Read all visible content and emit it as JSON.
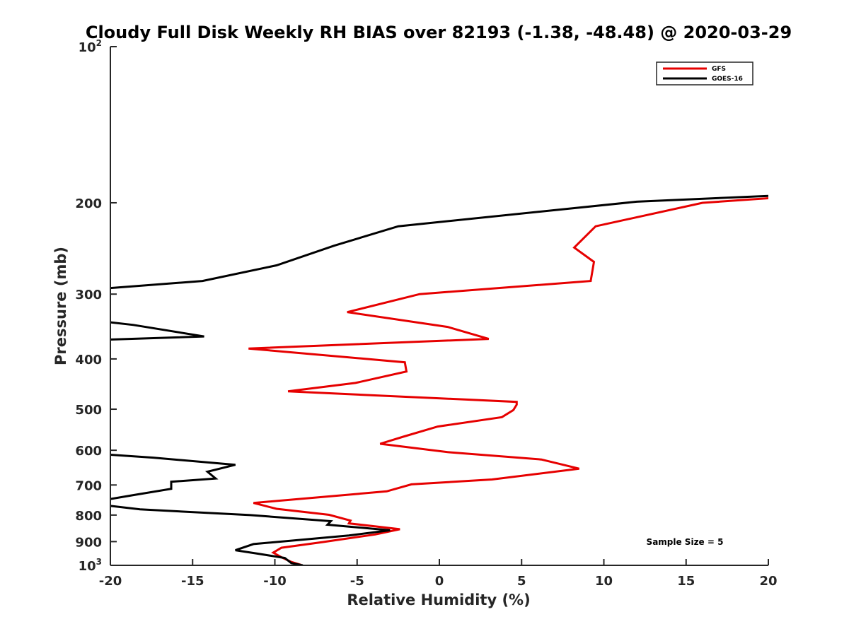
{
  "chart_data": {
    "type": "line",
    "title": "Cloudy Full Disk Weekly RH BIAS over 82193 (-1.38, -48.48) @ 2020-03-29",
    "xlabel": "Relative Humidity (%)",
    "ylabel": "Pressure (mb)",
    "xlim": [
      -20,
      20
    ],
    "ylim": [
      100,
      1000
    ],
    "y_scale": "log",
    "y_reversed": true,
    "grid": false,
    "x_ticks": [
      -20,
      -15,
      -10,
      -5,
      0,
      5,
      10,
      15,
      20
    ],
    "x_tick_labels": [
      "-20",
      "-15",
      "-10",
      "-5",
      "0",
      "5",
      "10",
      "15",
      "20"
    ],
    "y_ticks": [
      {
        "value": 100,
        "base": "10",
        "exp": "2"
      },
      {
        "value": 200,
        "label": "200"
      },
      {
        "value": 300,
        "label": "300"
      },
      {
        "value": 400,
        "label": "400"
      },
      {
        "value": 500,
        "label": "500"
      },
      {
        "value": 600,
        "label": "600"
      },
      {
        "value": 700,
        "label": "700"
      },
      {
        "value": 800,
        "label": "800"
      },
      {
        "value": 900,
        "label": "900"
      },
      {
        "value": 1000,
        "base": "10",
        "exp": "3"
      }
    ],
    "legend_position": "top-right",
    "annotation": "Sample Size = 5",
    "series": [
      {
        "name": "GFS",
        "color": "#e60000",
        "points": [
          [
            20,
            196
          ],
          [
            16,
            200
          ],
          [
            9.5,
            222
          ],
          [
            8.2,
            244
          ],
          [
            9.4,
            260
          ],
          [
            9.2,
            283
          ],
          [
            -1.2,
            300
          ],
          [
            -5.6,
            325
          ],
          [
            0.5,
            347
          ],
          [
            3.0,
            366
          ],
          [
            -11.6,
            382
          ],
          [
            -2.1,
            406
          ],
          [
            -2.0,
            423
          ],
          [
            -5.1,
            445
          ],
          [
            -9.2,
            462
          ],
          [
            4.7,
            484
          ],
          [
            4.7,
            490
          ],
          [
            4.5,
            502
          ],
          [
            3.8,
            518
          ],
          [
            -0.1,
            540
          ],
          [
            -2.2,
            565
          ],
          [
            -3.6,
            583
          ],
          [
            0.5,
            605
          ],
          [
            6.2,
            625
          ],
          [
            8.5,
            651
          ],
          [
            3.2,
            683
          ],
          [
            -1.7,
            698
          ],
          [
            -3.2,
            720
          ],
          [
            -7.1,
            738
          ],
          [
            -11.3,
            758
          ],
          [
            -9.9,
            778
          ],
          [
            -6.7,
            799
          ],
          [
            -5.4,
            820
          ],
          [
            -5.5,
            830
          ],
          [
            -2.4,
            852
          ],
          [
            -3.9,
            872
          ],
          [
            -7.1,
            902
          ],
          [
            -9.6,
            925
          ],
          [
            -10.1,
            945
          ],
          [
            -9.6,
            965
          ],
          [
            -9.0,
            985
          ],
          [
            -8.4,
            998
          ]
        ]
      },
      {
        "name": "GOES-16",
        "color": "#000000",
        "points": [
          [
            20,
            194
          ],
          [
            12,
            199
          ],
          [
            -2.5,
            222
          ],
          [
            -6.4,
            242
          ],
          [
            -9.9,
            264
          ],
          [
            -14.4,
            283
          ],
          [
            -20,
            292
          ],
          [
            null,
            null
          ],
          [
            -20,
            340
          ],
          [
            -18.6,
            344
          ],
          [
            -14.3,
            362
          ],
          [
            -20,
            367
          ],
          [
            null,
            null
          ],
          [
            -20,
            612
          ],
          [
            -17.4,
            620
          ],
          [
            -12.4,
            640
          ],
          [
            -14.1,
            660
          ],
          [
            -13.6,
            680
          ],
          [
            -16.3,
            690
          ],
          [
            -16.3,
            712
          ],
          [
            -18.7,
            733
          ],
          [
            -20,
            745
          ],
          [
            null,
            null
          ],
          [
            -20,
            768
          ],
          [
            -18.2,
            780
          ],
          [
            -11.5,
            800
          ],
          [
            -6.6,
            822
          ],
          [
            -6.8,
            835
          ],
          [
            -3.0,
            856
          ],
          [
            -5.5,
            876
          ],
          [
            -11.3,
            910
          ],
          [
            -12.4,
            935
          ],
          [
            -11.0,
            950
          ],
          [
            -9.4,
            968
          ],
          [
            -9.0,
            990
          ],
          [
            -8.3,
            1000
          ]
        ]
      }
    ]
  }
}
